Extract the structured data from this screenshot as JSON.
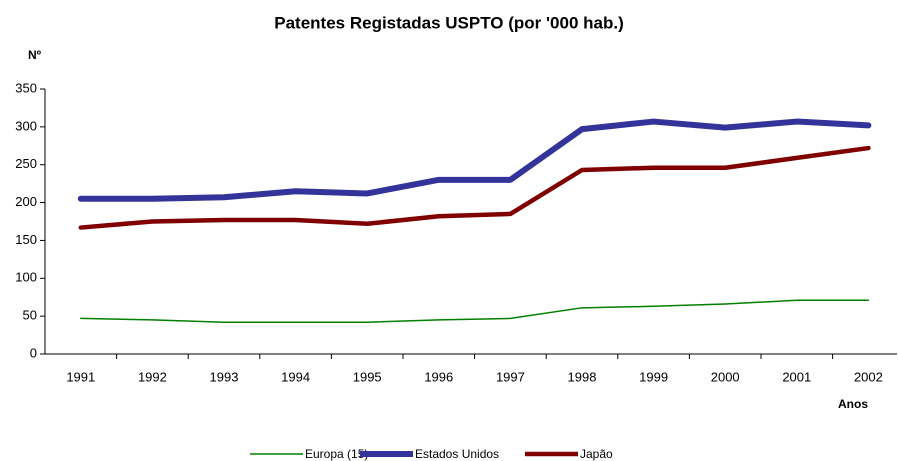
{
  "chart_data": {
    "type": "line",
    "title": "Patentes Registadas USPTO (por '000 hab.)",
    "y_label": "Nº",
    "x_label": "Anos",
    "categories": [
      "1991",
      "1992",
      "1993",
      "1994",
      "1995",
      "1996",
      "1997",
      "1998",
      "1999",
      "2000",
      "2001",
      "2002"
    ],
    "series": [
      {
        "name": "Europa (15)",
        "color": "#008000",
        "width": 1.5,
        "values": [
          47,
          45,
          42,
          42,
          42,
          45,
          47,
          61,
          63,
          66,
          71,
          71
        ]
      },
      {
        "name": "Estados Unidos",
        "color": "#333399",
        "width": 6,
        "values": [
          205,
          205,
          207,
          215,
          212,
          230,
          230,
          297,
          307,
          299,
          307,
          302
        ]
      },
      {
        "name": "Japão",
        "color": "#800000",
        "width": 4.5,
        "values": [
          167,
          175,
          177,
          177,
          172,
          182,
          185,
          243,
          246,
          246,
          259,
          272
        ]
      }
    ],
    "ylim": [
      0,
      350
    ],
    "yticks": [
      0,
      50,
      100,
      150,
      200,
      250,
      300,
      350
    ]
  }
}
